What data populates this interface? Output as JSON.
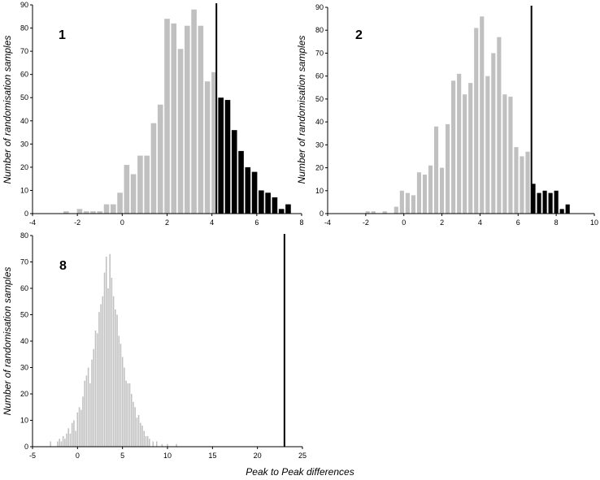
{
  "ylabel": "Number of randomisation samples",
  "xlabel": "Peak to Peak differences",
  "colors": {
    "below": "#c0c0c0",
    "above": "#000000",
    "observed": "#000000"
  },
  "chart_data": [
    {
      "type": "bar",
      "panel_label": "1",
      "xlim": [
        -4,
        8
      ],
      "ylim": [
        0,
        90
      ],
      "xticks": [
        "-4",
        "-2",
        "0",
        "2",
        "4",
        "6",
        "8"
      ],
      "yticks": [
        "0",
        "10",
        "20",
        "30",
        "40",
        "50",
        "60",
        "70",
        "80",
        "90"
      ],
      "observed_value": 4.2,
      "bar_width": 0.24,
      "x": [
        -2.5,
        -2.2,
        -1.9,
        -1.6,
        -1.3,
        -1.0,
        -0.7,
        -0.4,
        -0.1,
        0.2,
        0.5,
        0.8,
        1.1,
        1.4,
        1.7,
        2.0,
        2.3,
        2.6,
        2.9,
        3.2,
        3.5,
        3.8,
        4.1,
        4.4,
        4.7,
        5.0,
        5.3,
        5.6,
        5.9,
        6.2,
        6.5,
        6.8,
        7.1,
        7.4
      ],
      "values": [
        1,
        0,
        2,
        1,
        1,
        1,
        4,
        4,
        9,
        21,
        17,
        25,
        25,
        39,
        47,
        84,
        82,
        71,
        81,
        88,
        81,
        57,
        61,
        50,
        49,
        36,
        27,
        20,
        18,
        10,
        9,
        7,
        2,
        4
      ]
    },
    {
      "type": "bar",
      "panel_label": "2",
      "xlim": [
        -4,
        10
      ],
      "ylim": [
        0,
        90
      ],
      "xticks": [
        "-4",
        "-2",
        "0",
        "2",
        "4",
        "6",
        "8",
        "10"
      ],
      "yticks": [
        "0",
        "10",
        "20",
        "30",
        "40",
        "50",
        "60",
        "70",
        "80",
        "90"
      ],
      "observed_value": 6.7,
      "bar_width": 0.22,
      "x": [
        -1.9,
        -1.6,
        -1.3,
        -1.0,
        -0.7,
        -0.4,
        -0.1,
        0.2,
        0.5,
        0.8,
        1.1,
        1.4,
        1.7,
        2.0,
        2.3,
        2.6,
        2.9,
        3.2,
        3.5,
        3.8,
        4.1,
        4.4,
        4.7,
        5.0,
        5.3,
        5.6,
        5.9,
        6.2,
        6.5,
        6.8,
        7.1,
        7.4,
        7.7,
        8.0,
        8.3,
        8.6
      ],
      "values": [
        1,
        1,
        0,
        1,
        0,
        3,
        10,
        9,
        8,
        18,
        17,
        21,
        38,
        20,
        39,
        58,
        61,
        52,
        57,
        81,
        86,
        60,
        70,
        77,
        52,
        51,
        29,
        25,
        27,
        13,
        9,
        10,
        9,
        10,
        2,
        4
      ]
    },
    {
      "type": "bar",
      "panel_label": "8",
      "xlim": [
        -5,
        25
      ],
      "ylim": [
        0,
        80
      ],
      "xticks": [
        "-5",
        "0",
        "5",
        "10",
        "15",
        "20",
        "25"
      ],
      "yticks": [
        "0",
        "10",
        "20",
        "30",
        "40",
        "50",
        "60",
        "70",
        "80"
      ],
      "observed_value": 23,
      "bar_width": 0.14,
      "x": [
        -3.0,
        -2.2,
        -2.0,
        -1.8,
        -1.6,
        -1.4,
        -1.2,
        -1.0,
        -0.8,
        -0.6,
        -0.4,
        -0.2,
        0.0,
        0.2,
        0.4,
        0.6,
        0.8,
        1.0,
        1.2,
        1.4,
        1.6,
        1.8,
        2.0,
        2.2,
        2.4,
        2.6,
        2.8,
        3.0,
        3.2,
        3.4,
        3.6,
        3.8,
        4.0,
        4.2,
        4.4,
        4.6,
        4.8,
        5.0,
        5.2,
        5.4,
        5.6,
        5.8,
        6.0,
        6.2,
        6.4,
        6.6,
        6.8,
        7.0,
        7.2,
        7.4,
        7.6,
        7.8,
        8.0,
        8.4,
        8.8,
        9.4,
        10.0,
        11.0
      ],
      "values": [
        2,
        2,
        3,
        2,
        4,
        3,
        5,
        7,
        5,
        9,
        10,
        6,
        13,
        15,
        14,
        19,
        25,
        27,
        30,
        24,
        33,
        37,
        44,
        43,
        51,
        54,
        57,
        66,
        72,
        60,
        73,
        64,
        57,
        52,
        50,
        42,
        39,
        34,
        30,
        25,
        24,
        24,
        20,
        17,
        15,
        11,
        12,
        9,
        8,
        6,
        4,
        4,
        3,
        2,
        2,
        1,
        1,
        1
      ]
    }
  ]
}
